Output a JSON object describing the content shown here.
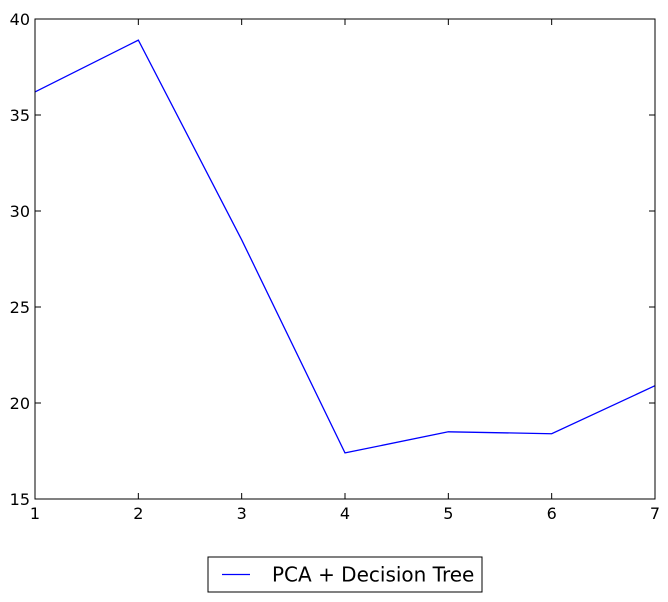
{
  "chart_data": {
    "type": "line",
    "x": [
      1,
      2,
      3,
      4,
      5,
      6,
      7
    ],
    "series": [
      {
        "name": "PCA + Decision Tree",
        "values": [
          36.2,
          38.9,
          28.5,
          17.4,
          18.5,
          18.4,
          20.9
        ],
        "color": "#0000ff"
      }
    ],
    "xlim": [
      1,
      7
    ],
    "ylim": [
      15,
      40
    ],
    "xticks": [
      1,
      2,
      3,
      4,
      5,
      6,
      7
    ],
    "yticks": [
      15,
      20,
      25,
      30,
      35,
      40
    ],
    "grid": false,
    "legend_position": "bottom-center"
  }
}
